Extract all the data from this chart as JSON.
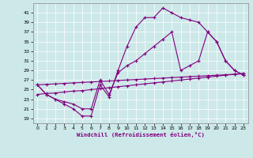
{
  "background_color": "#cde8e8",
  "line_color": "#800080",
  "xlabel": "Windchill (Refroidissement éolien,°C)",
  "x_ticks": [
    0,
    1,
    2,
    3,
    4,
    5,
    6,
    7,
    8,
    9,
    10,
    11,
    12,
    13,
    14,
    15,
    16,
    17,
    18,
    19,
    20,
    21,
    22,
    23
  ],
  "y_ticks": [
    19,
    21,
    23,
    25,
    27,
    29,
    31,
    33,
    35,
    37,
    39,
    41
  ],
  "ylim": [
    18.0,
    43.0
  ],
  "xlim": [
    -0.5,
    23.5
  ],
  "curve1_x": [
    0,
    1,
    2,
    3,
    4,
    5,
    6,
    7,
    8,
    9,
    10,
    11,
    12,
    13,
    14,
    15,
    16,
    17,
    18,
    19,
    20,
    21,
    22,
    23
  ],
  "curve1_y": [
    26,
    24,
    23,
    22,
    21,
    19.5,
    19.5,
    26,
    23.5,
    29,
    34,
    38,
    40,
    40,
    42,
    41,
    40,
    39.5,
    39,
    37,
    35,
    31,
    29,
    28
  ],
  "curve2_x": [
    0,
    1,
    2,
    3,
    4,
    5,
    6,
    7,
    8,
    9,
    10,
    11,
    12,
    13,
    14,
    15,
    16,
    17,
    18,
    19,
    20,
    21,
    22,
    23
  ],
  "curve2_y": [
    26,
    24,
    23,
    22.5,
    22,
    21,
    21,
    27,
    24,
    28.5,
    30,
    31,
    32.5,
    34,
    35.5,
    37,
    29,
    30,
    31,
    37,
    35,
    31,
    29,
    28
  ],
  "diag1_x": [
    0,
    1,
    2,
    3,
    4,
    5,
    6,
    7,
    8,
    9,
    10,
    11,
    12,
    13,
    14,
    15,
    16,
    17,
    18,
    19,
    20,
    21,
    22,
    23
  ],
  "diag1_y": [
    24,
    24.2,
    24.3,
    24.5,
    24.7,
    24.8,
    25.0,
    25.2,
    25.4,
    25.6,
    25.8,
    26.0,
    26.2,
    26.4,
    26.6,
    26.8,
    27.0,
    27.2,
    27.4,
    27.6,
    27.8,
    28.0,
    28.2,
    28.4
  ],
  "diag2_x": [
    0,
    1,
    2,
    3,
    4,
    5,
    6,
    7,
    8,
    9,
    10,
    11,
    12,
    13,
    14,
    15,
    16,
    17,
    18,
    19,
    20,
    21,
    22,
    23
  ],
  "diag2_y": [
    26,
    26.1,
    26.2,
    26.3,
    26.4,
    26.5,
    26.6,
    26.7,
    26.8,
    26.9,
    27.0,
    27.1,
    27.2,
    27.3,
    27.4,
    27.5,
    27.6,
    27.7,
    27.8,
    27.9,
    28.0,
    28.1,
    28.2,
    28.3
  ]
}
